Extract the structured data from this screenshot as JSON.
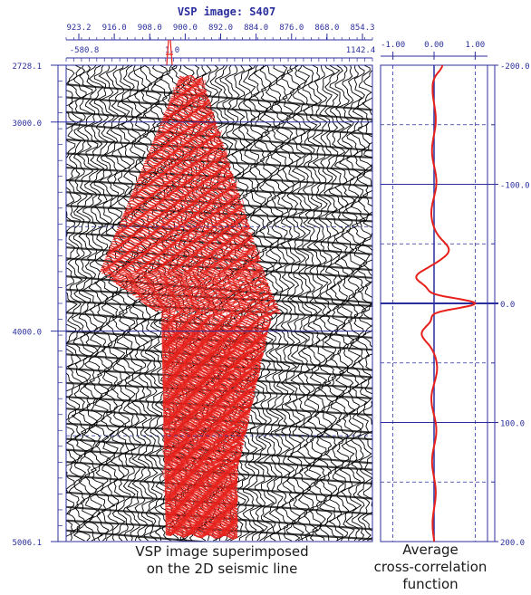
{
  "title": "VSP image: S407",
  "top_axis": {
    "row1": [
      "923.2",
      "916.0",
      "908.0",
      "900.0",
      "892.0",
      "884.0",
      "876.0",
      "868.0",
      "854.3"
    ],
    "row2": [
      "-580.8",
      "1.0",
      "1142.4"
    ]
  },
  "left_axis": {
    "labels": [
      "2728.1",
      "3000.0",
      "4000.0",
      "5006.1"
    ],
    "values": [
      2728.1,
      3000.0,
      4000.0,
      5006.1
    ]
  },
  "corr_axis": {
    "top_labels": [
      "-1.00",
      "0.00",
      "1.00"
    ],
    "right_labels": [
      "-200.0",
      "-100.0",
      "0.0",
      "100.0",
      "200.0"
    ],
    "right_values": [
      -200,
      -100,
      0,
      100,
      200
    ]
  },
  "captions": {
    "left_line1": "VSP image superimposed",
    "left_line2": "on the 2D seismic line",
    "right_line1": "Average",
    "right_line2": "cross-correlation",
    "right_line3": "function"
  },
  "colors": {
    "axis": "#2b2f9e",
    "overlay": "#e8201b",
    "trace": "#000000",
    "curve": "#e8201b"
  }
}
